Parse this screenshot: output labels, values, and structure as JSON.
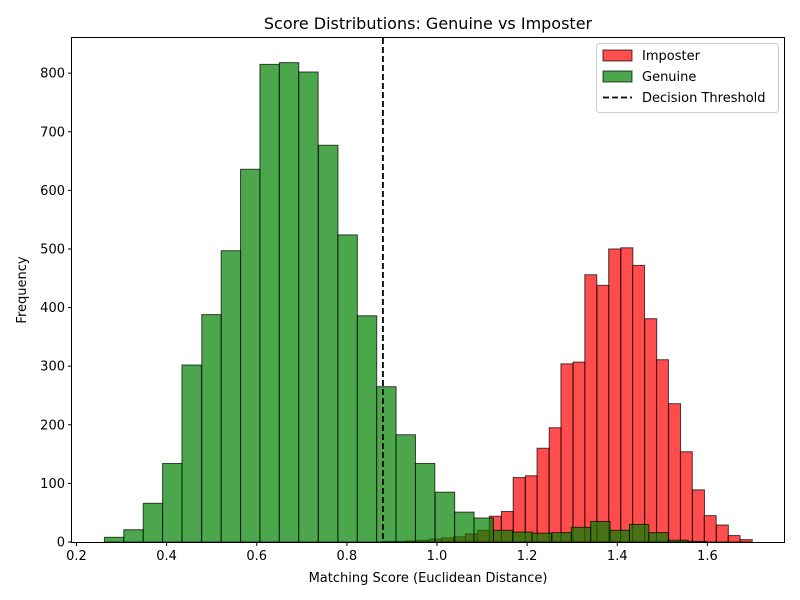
{
  "chart_data": {
    "type": "bar",
    "title": "Score Distributions: Genuine vs Imposter",
    "xlabel": "Matching Score (Euclidean Distance)",
    "ylabel": "Frequency",
    "xlim": [
      0.19,
      1.77
    ],
    "ylim": [
      0,
      860
    ],
    "x_ticks": [
      0.2,
      0.4,
      0.6,
      0.8,
      1.0,
      1.2,
      1.4,
      1.6
    ],
    "x_tick_labels": [
      "0.2",
      "0.4",
      "0.6",
      "0.8",
      "1.0",
      "1.2",
      "1.4",
      "1.6"
    ],
    "y_ticks": [
      0,
      100,
      200,
      300,
      400,
      500,
      600,
      700,
      800
    ],
    "y_tick_labels": [
      "0",
      "100",
      "200",
      "300",
      "400",
      "500",
      "600",
      "700",
      "800"
    ],
    "grid": false,
    "legend_position": "upper right",
    "series": [
      {
        "name": "Imposter",
        "color": "#ff0000",
        "alpha": 0.7,
        "bin_width": 0.0265,
        "bins": [
          [
            0.878,
            1
          ],
          [
            0.904,
            1
          ],
          [
            0.931,
            2
          ],
          [
            0.957,
            3
          ],
          [
            0.984,
            5
          ],
          [
            1.01,
            7
          ],
          [
            1.037,
            9
          ],
          [
            1.063,
            14
          ],
          [
            1.09,
            20
          ],
          [
            1.116,
            44
          ],
          [
            1.143,
            52
          ],
          [
            1.169,
            110
          ],
          [
            1.196,
            113
          ],
          [
            1.222,
            160
          ],
          [
            1.249,
            195
          ],
          [
            1.275,
            304
          ],
          [
            1.302,
            307
          ],
          [
            1.328,
            456
          ],
          [
            1.355,
            438
          ],
          [
            1.381,
            500
          ],
          [
            1.408,
            502
          ],
          [
            1.434,
            472
          ],
          [
            1.461,
            381
          ],
          [
            1.487,
            311
          ],
          [
            1.514,
            236
          ],
          [
            1.54,
            154
          ],
          [
            1.567,
            89
          ],
          [
            1.593,
            45
          ],
          [
            1.62,
            29
          ],
          [
            1.646,
            11
          ],
          [
            1.673,
            4
          ]
        ]
      },
      {
        "name": "Genuine",
        "color": "#008000",
        "alpha": 0.7,
        "bin_width": 0.0432,
        "bins": [
          [
            0.262,
            8
          ],
          [
            0.305,
            21
          ],
          [
            0.348,
            66
          ],
          [
            0.391,
            134
          ],
          [
            0.434,
            302
          ],
          [
            0.478,
            388
          ],
          [
            0.521,
            497
          ],
          [
            0.564,
            636
          ],
          [
            0.607,
            815
          ],
          [
            0.65,
            818
          ],
          [
            0.693,
            802
          ],
          [
            0.737,
            677
          ],
          [
            0.78,
            524
          ],
          [
            0.823,
            386
          ],
          [
            0.866,
            265
          ],
          [
            0.909,
            183
          ],
          [
            0.952,
            134
          ],
          [
            0.996,
            85
          ],
          [
            1.039,
            51
          ],
          [
            1.082,
            41
          ],
          [
            1.125,
            20
          ],
          [
            1.168,
            17
          ],
          [
            1.211,
            15
          ],
          [
            1.255,
            16
          ],
          [
            1.298,
            25
          ],
          [
            1.341,
            35
          ],
          [
            1.384,
            20
          ],
          [
            1.427,
            30
          ],
          [
            1.47,
            16
          ],
          [
            1.514,
            3
          ],
          [
            1.557,
            1
          ]
        ]
      }
    ],
    "threshold": {
      "name": "Decision Threshold",
      "x": 0.88,
      "color": "#000000",
      "style": "dashed"
    }
  }
}
